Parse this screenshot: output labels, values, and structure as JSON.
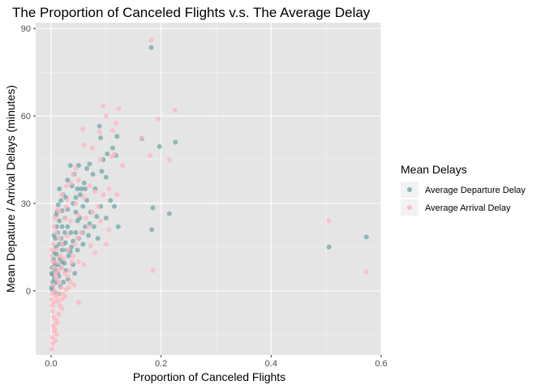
{
  "chart_data": {
    "type": "scatter",
    "title": "The Proportion of Canceled Flights v.s. The Average Delay",
    "xlabel": "Proportion of Canceled Flights",
    "ylabel": "Mean Depature / Arrival Delays (minutes)",
    "xlim": [
      -0.028,
      0.6
    ],
    "ylim": [
      -22,
      92
    ],
    "xticks": [
      0.0,
      0.2,
      0.4,
      0.6
    ],
    "xtick_labels": [
      "0.0",
      "0.2",
      "0.4",
      "0.6"
    ],
    "yticks": [
      0,
      30,
      60,
      90
    ],
    "ytick_labels": [
      "0",
      "30",
      "60",
      "90"
    ],
    "grid": true,
    "background": "#e5e5e5",
    "legend": {
      "title": "Mean Delays",
      "position": "right"
    },
    "series": [
      {
        "name": "Average Departure Delay",
        "color": "#5f9ea0",
        "points": [
          [
            0.182,
            83.5
          ],
          [
            0.165,
            52.2
          ],
          [
            0.226,
            51
          ],
          [
            0.197,
            49.5
          ],
          [
            0.12,
            53
          ],
          [
            0.09,
            52.5
          ],
          [
            0.112,
            49
          ],
          [
            0.118,
            46.5
          ],
          [
            0.088,
            56.5
          ],
          [
            0.102,
            47
          ],
          [
            0.095,
            45
          ],
          [
            0.07,
            43.5
          ],
          [
            0.05,
            43
          ],
          [
            0.065,
            42
          ],
          [
            0.042,
            40
          ],
          [
            0.035,
            43
          ],
          [
            0.03,
            38
          ],
          [
            0.038,
            36
          ],
          [
            0.048,
            35
          ],
          [
            0.055,
            35
          ],
          [
            0.062,
            35
          ],
          [
            0.08,
            35
          ],
          [
            0.076,
            40
          ],
          [
            0.092,
            41
          ],
          [
            0.1,
            39
          ],
          [
            0.108,
            31
          ],
          [
            0.09,
            29
          ],
          [
            0.1,
            25
          ],
          [
            0.083,
            25.5
          ],
          [
            0.07,
            23
          ],
          [
            0.062,
            22
          ],
          [
            0.048,
            24
          ],
          [
            0.045,
            20
          ],
          [
            0.05,
            18
          ],
          [
            0.058,
            16
          ],
          [
            0.04,
            17
          ],
          [
            0.037,
            15
          ],
          [
            0.035,
            13.5
          ],
          [
            0.03,
            28
          ],
          [
            0.025,
            25
          ],
          [
            0.02,
            22
          ],
          [
            0.025,
            20
          ],
          [
            0.018,
            18
          ],
          [
            0.022,
            16
          ],
          [
            0.028,
            14
          ],
          [
            0.032,
            12
          ],
          [
            0.015,
            24
          ],
          [
            0.01,
            22
          ],
          [
            0.012,
            20
          ],
          [
            0.008,
            18
          ],
          [
            0.015,
            16
          ],
          [
            0.02,
            14
          ],
          [
            0.01,
            12.5
          ],
          [
            0.005,
            10
          ],
          [
            0.012,
            9
          ],
          [
            0.018,
            8
          ],
          [
            0.008,
            7
          ],
          [
            0.003,
            5.5
          ],
          [
            0.006,
            4
          ],
          [
            0.01,
            3
          ],
          [
            0.004,
            2
          ],
          [
            0.002,
            0.5
          ],
          [
            0.007,
            -0.5
          ],
          [
            0.012,
            6
          ],
          [
            0.016,
            11
          ],
          [
            0.024,
            9.5
          ],
          [
            0.027,
            7
          ],
          [
            0.031,
            4
          ],
          [
            0.022,
            3
          ],
          [
            0.017,
            1.5
          ],
          [
            0.014,
            -1
          ],
          [
            0.009,
            15
          ],
          [
            0.006,
            13
          ],
          [
            0.004,
            11
          ],
          [
            0.002,
            8
          ],
          [
            0.001,
            6
          ],
          [
            0.003,
            3
          ],
          [
            0.001,
            1
          ],
          [
            0.009,
            26
          ],
          [
            0.013,
            29.5
          ],
          [
            0.018,
            31
          ],
          [
            0.022,
            33
          ],
          [
            0.015,
            35
          ],
          [
            0.027,
            32
          ],
          [
            0.04,
            30
          ],
          [
            0.045,
            27
          ],
          [
            0.052,
            25
          ],
          [
            0.058,
            29
          ],
          [
            0.065,
            31
          ],
          [
            0.072,
            27
          ],
          [
            0.078,
            22
          ],
          [
            0.085,
            18
          ],
          [
            0.06,
            37
          ],
          [
            0.053,
            33
          ],
          [
            0.045,
            32
          ],
          [
            0.048,
            14
          ],
          [
            0.04,
            9
          ],
          [
            0.043,
            6
          ],
          [
            0.185,
            28.5
          ],
          [
            0.183,
            21
          ],
          [
            0.215,
            26.5
          ],
          [
            0.115,
            29
          ],
          [
            0.122,
            22
          ],
          [
            0.505,
            15
          ],
          [
            0.573,
            18.5
          ],
          [
            0.011,
            27
          ],
          [
            0.005,
            19
          ],
          [
            0.02,
            27.5
          ],
          [
            0.03,
            22
          ],
          [
            0.036,
            20
          ],
          [
            0.057,
            20
          ],
          [
            0.068,
            19
          ],
          [
            0.014,
            5
          ],
          [
            0.006,
            8.5
          ],
          [
            0.02,
            10
          ],
          [
            0.026,
            16.5
          ]
        ]
      },
      {
        "name": "Average Arrival Delay",
        "color": "#ffb6c1",
        "points": [
          [
            0.182,
            86
          ],
          [
            0.095,
            63.5
          ],
          [
            0.123,
            62.5
          ],
          [
            0.225,
            62
          ],
          [
            0.1,
            60
          ],
          [
            0.195,
            59
          ],
          [
            0.118,
            57.5
          ],
          [
            0.058,
            55.5
          ],
          [
            0.112,
            55
          ],
          [
            0.088,
            54.5
          ],
          [
            0.165,
            52.5
          ],
          [
            0.06,
            50
          ],
          [
            0.075,
            49
          ],
          [
            0.09,
            45
          ],
          [
            0.11,
            46
          ],
          [
            0.13,
            43
          ],
          [
            0.18,
            46.5
          ],
          [
            0.215,
            45
          ],
          [
            0.045,
            42
          ],
          [
            0.05,
            38
          ],
          [
            0.036,
            37
          ],
          [
            0.07,
            36
          ],
          [
            0.08,
            34
          ],
          [
            0.06,
            32
          ],
          [
            0.045,
            30
          ],
          [
            0.03,
            31
          ],
          [
            0.02,
            33
          ],
          [
            0.015,
            27
          ],
          [
            0.025,
            25
          ],
          [
            0.035,
            24
          ],
          [
            0.05,
            26
          ],
          [
            0.068,
            22
          ],
          [
            0.09,
            24
          ],
          [
            0.105,
            21
          ],
          [
            0.1,
            16
          ],
          [
            0.08,
            13
          ],
          [
            0.072,
            15.5
          ],
          [
            0.06,
            9
          ],
          [
            0.05,
            10
          ],
          [
            0.04,
            12
          ],
          [
            0.03,
            14
          ],
          [
            0.02,
            16
          ],
          [
            0.015,
            18
          ],
          [
            0.01,
            20
          ],
          [
            0.005,
            22
          ],
          [
            0.01,
            14
          ],
          [
            0.012,
            10
          ],
          [
            0.018,
            8
          ],
          [
            0.025,
            6
          ],
          [
            0.03,
            5
          ],
          [
            0.035,
            3
          ],
          [
            0.042,
            2
          ],
          [
            0.05,
            -4
          ],
          [
            0.022,
            -1
          ],
          [
            0.018,
            1
          ],
          [
            0.015,
            3
          ],
          [
            0.01,
            4
          ],
          [
            0.008,
            6
          ],
          [
            0.005,
            8
          ],
          [
            0.003,
            10
          ],
          [
            0.002,
            12
          ],
          [
            0.001,
            14
          ],
          [
            0.004,
            2
          ],
          [
            0.006,
            0
          ],
          [
            0.009,
            -2
          ],
          [
            0.012,
            -3.5
          ],
          [
            0.016,
            -5
          ],
          [
            0.02,
            -6
          ],
          [
            0.014,
            -8
          ],
          [
            0.009,
            -10
          ],
          [
            0.005,
            -9
          ],
          [
            0.003,
            -7
          ],
          [
            0.002,
            -5
          ],
          [
            0.001,
            -3
          ],
          [
            0.004,
            -12
          ],
          [
            0.006,
            -14
          ],
          [
            0.002,
            -16
          ],
          [
            0.003,
            -18
          ],
          [
            0.001,
            -20
          ],
          [
            0.008,
            -17
          ],
          [
            0.011,
            -11
          ],
          [
            0.007,
            -13
          ],
          [
            0.013,
            -1
          ],
          [
            0.019,
            -3
          ],
          [
            0.025,
            -2
          ],
          [
            0.028,
            0.5
          ],
          [
            0.033,
            7
          ],
          [
            0.038,
            10
          ],
          [
            0.043,
            16
          ],
          [
            0.048,
            18
          ],
          [
            0.055,
            20
          ],
          [
            0.063,
            25
          ],
          [
            0.075,
            27
          ],
          [
            0.085,
            29
          ],
          [
            0.095,
            33
          ],
          [
            0.105,
            35
          ],
          [
            0.185,
            7
          ],
          [
            0.505,
            24
          ],
          [
            0.573,
            6.5
          ],
          [
            0.12,
            33
          ],
          [
            0.115,
            47
          ],
          [
            0.04,
            40
          ],
          [
            0.028,
            36
          ],
          [
            0.012,
            28
          ],
          [
            0.007,
            25
          ],
          [
            0.017,
            12
          ],
          [
            0.023,
            11
          ],
          [
            0.029,
            19
          ],
          [
            0.002,
            -1
          ],
          [
            0.005,
            -4
          ],
          [
            0.009,
            5
          ],
          [
            0.014,
            7
          ],
          [
            0.032,
            1
          ],
          [
            0.027,
            29
          ],
          [
            0.01,
            -15
          ],
          [
            0.004,
            16
          ]
        ]
      }
    ]
  }
}
